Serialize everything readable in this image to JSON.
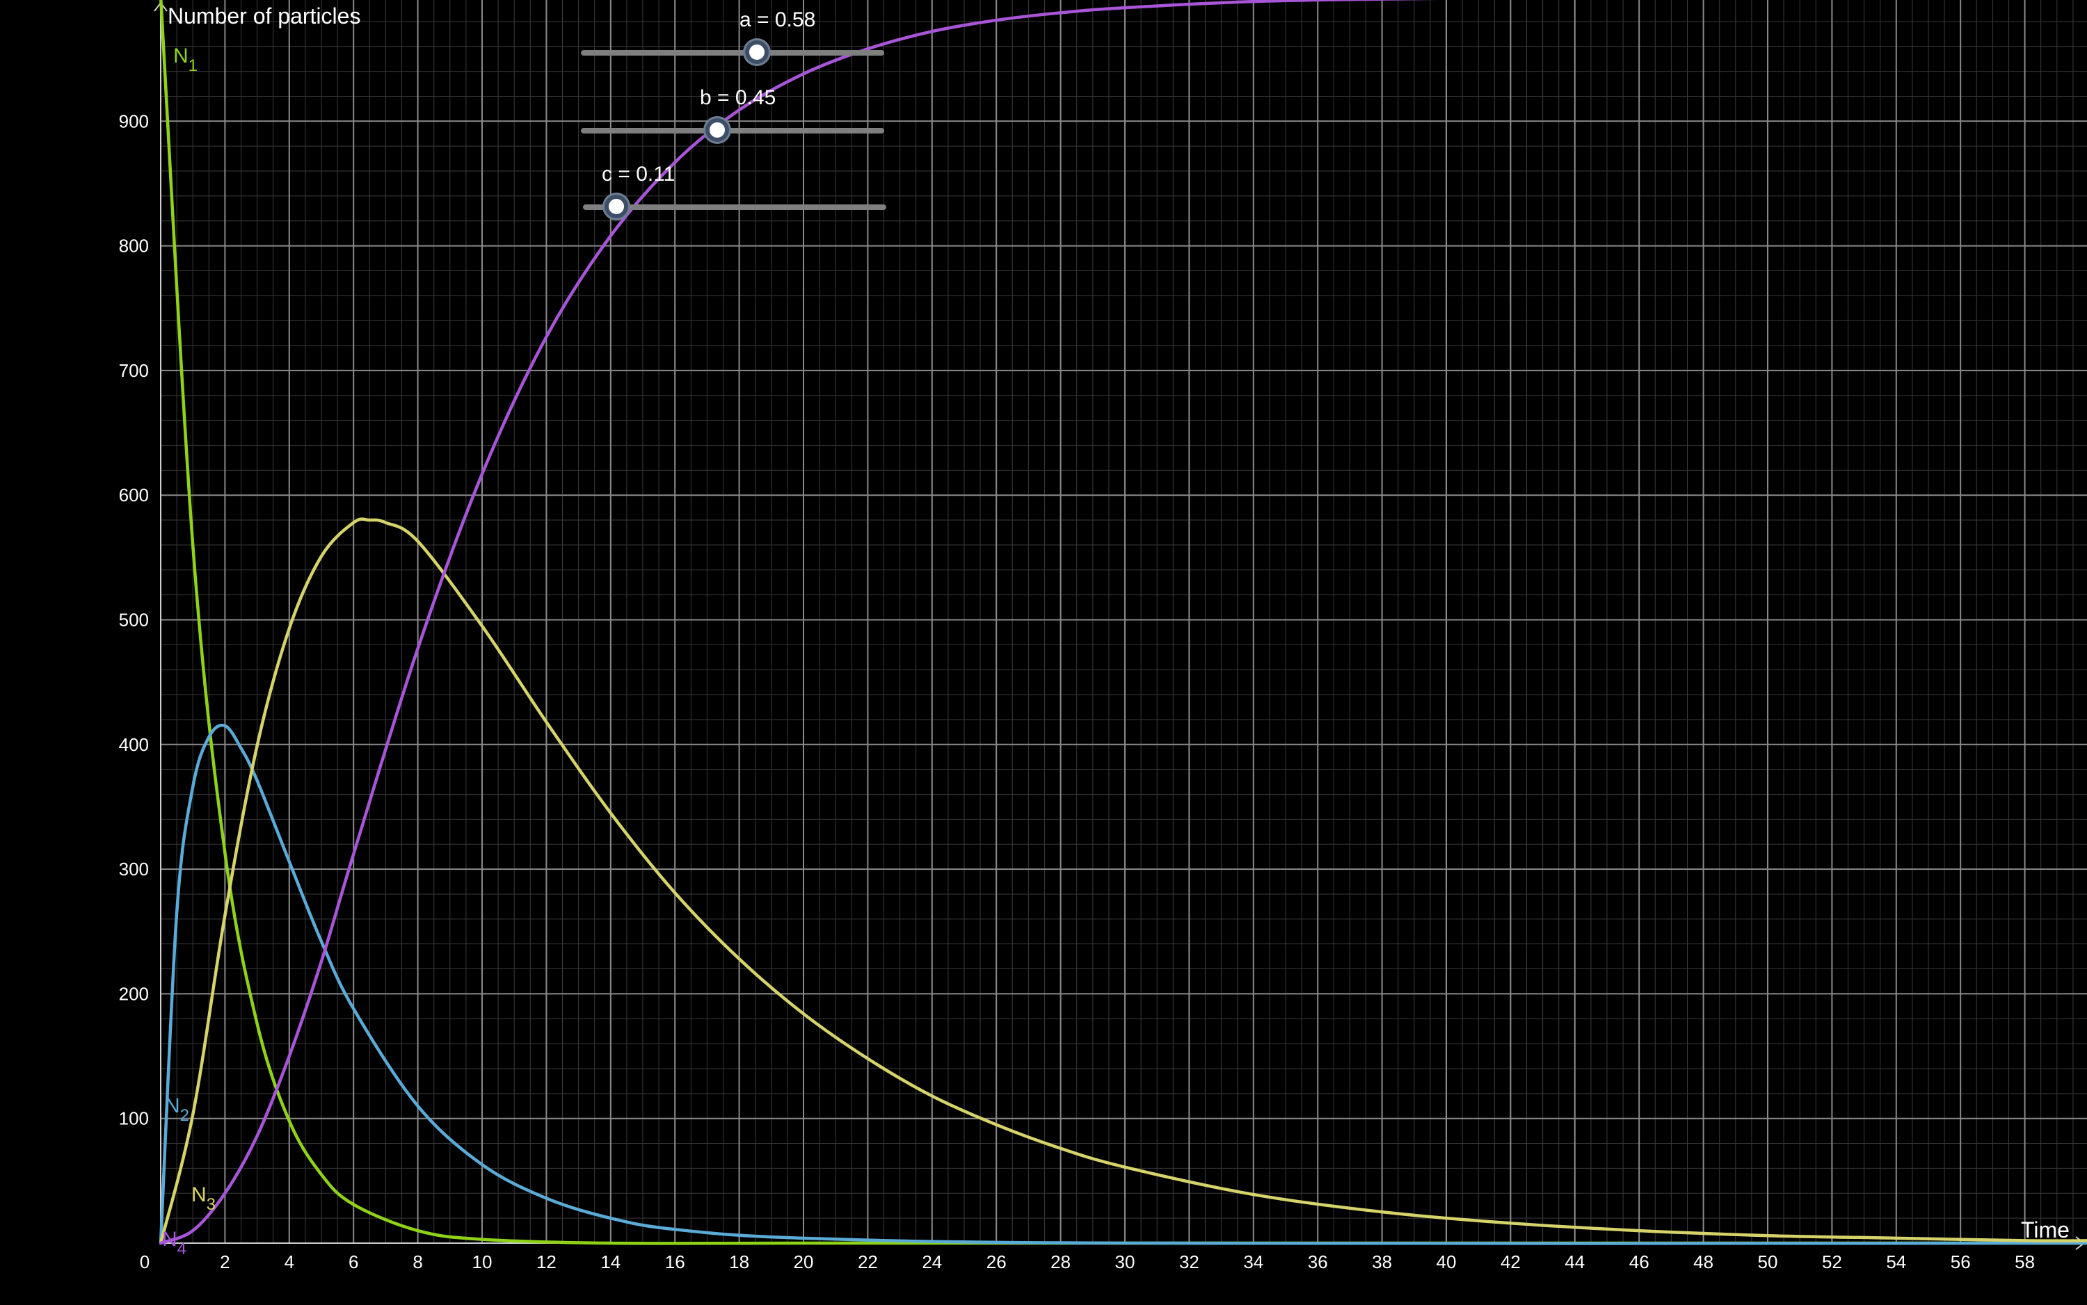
{
  "chart_data": {
    "type": "line",
    "ylabel": "Number of particles",
    "xlabel": "Time",
    "xlim": [
      0,
      60
    ],
    "ylim": [
      0,
      1000
    ],
    "grid": true,
    "x_ticks": [
      0,
      2,
      4,
      6,
      8,
      10,
      12,
      14,
      16,
      18,
      20,
      22,
      24,
      26,
      28,
      30,
      32,
      34,
      36,
      38,
      40,
      42,
      44,
      46,
      48,
      50,
      52,
      54,
      56,
      58
    ],
    "y_ticks": [
      100,
      200,
      300,
      400,
      500,
      600,
      700,
      800,
      900
    ],
    "parameters": {
      "a": 0.58,
      "b": 0.45,
      "c": 0.11,
      "N0": 1000
    },
    "series": [
      {
        "name": "N1",
        "label_main": "N",
        "label_sub": "1",
        "color": "#8fd319",
        "x": [
          0,
          1,
          2,
          3,
          4,
          5,
          6,
          8,
          10,
          14,
          20,
          30,
          60
        ],
        "y": [
          1000,
          560,
          313,
          176,
          98,
          55,
          31,
          10,
          3,
          0,
          0,
          0,
          0
        ]
      },
      {
        "name": "N2",
        "label_main": "N",
        "label_sub": "2",
        "color": "#5aabd8",
        "x": [
          0,
          0.5,
          1,
          1.5,
          2,
          2.5,
          3,
          4,
          5,
          6,
          8,
          10,
          12,
          14,
          16,
          20,
          30,
          60
        ],
        "y": [
          0,
          265,
          366,
          406,
          415,
          397,
          371,
          306,
          242,
          188,
          110,
          63,
          36,
          20,
          11,
          4,
          0,
          0
        ]
      },
      {
        "name": "N3",
        "label_main": "N",
        "label_sub": "3",
        "color": "#d6d36a",
        "x": [
          0,
          1,
          2,
          3,
          4,
          5,
          6,
          6.5,
          7,
          8,
          10,
          12,
          14,
          16,
          18,
          20,
          22,
          24,
          26,
          28,
          30,
          34,
          38,
          42,
          46,
          50,
          54,
          58,
          60
        ],
        "y": [
          0,
          103,
          263,
          399,
          493,
          551,
          578,
          580,
          578,
          563,
          495,
          418,
          345,
          281,
          228,
          184,
          148,
          118,
          95,
          76,
          61,
          39,
          25,
          16,
          10,
          6,
          4,
          2,
          2
        ]
      },
      {
        "name": "N4",
        "label_main": "N",
        "label_sub": "4",
        "color": "#a855d8",
        "x": [
          0,
          1,
          2,
          3,
          4,
          5,
          6,
          8,
          10,
          12,
          14,
          16,
          18,
          20,
          22,
          24,
          26,
          28,
          30,
          34,
          38,
          42,
          46,
          50,
          54,
          58,
          60
        ],
        "y": [
          0,
          10,
          40,
          86,
          150,
          226,
          312,
          477,
          617,
          727,
          808,
          867,
          909,
          938,
          958,
          972,
          981,
          987,
          991,
          996,
          998,
          999,
          1000,
          1000,
          1000,
          1000,
          1000
        ]
      }
    ]
  },
  "sliders": [
    {
      "name": "a",
      "label": "a = 0.58",
      "value": 0.58,
      "position": 0.58
    },
    {
      "name": "b",
      "label": "b = 0.45",
      "value": 0.45,
      "position": 0.45
    },
    {
      "name": "c",
      "label": "c = 0.11",
      "value": 0.11,
      "position": 0.11
    }
  ]
}
